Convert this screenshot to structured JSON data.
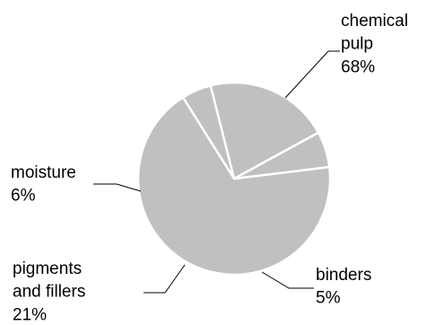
{
  "chart_data": {
    "type": "pie",
    "title": "",
    "slices": [
      {
        "label_lines": [
          "chemical",
          "pulp"
        ],
        "value": 68,
        "value_label": "68%"
      },
      {
        "label_lines": [
          "binders"
        ],
        "value": 5,
        "value_label": "5%"
      },
      {
        "label_lines": [
          "pigments",
          "and fillers"
        ],
        "value": 21,
        "value_label": "21%"
      },
      {
        "label_lines": [
          "moisture"
        ],
        "value": 6,
        "value_label": "6%"
      }
    ],
    "start_angle_deg": -7,
    "direction": "clockwise",
    "legend": "none",
    "colors": {
      "slice_fill": "#c0c0c0",
      "slice_border": "#ffffff",
      "leader_line": "#000000",
      "text": "#000000"
    }
  }
}
